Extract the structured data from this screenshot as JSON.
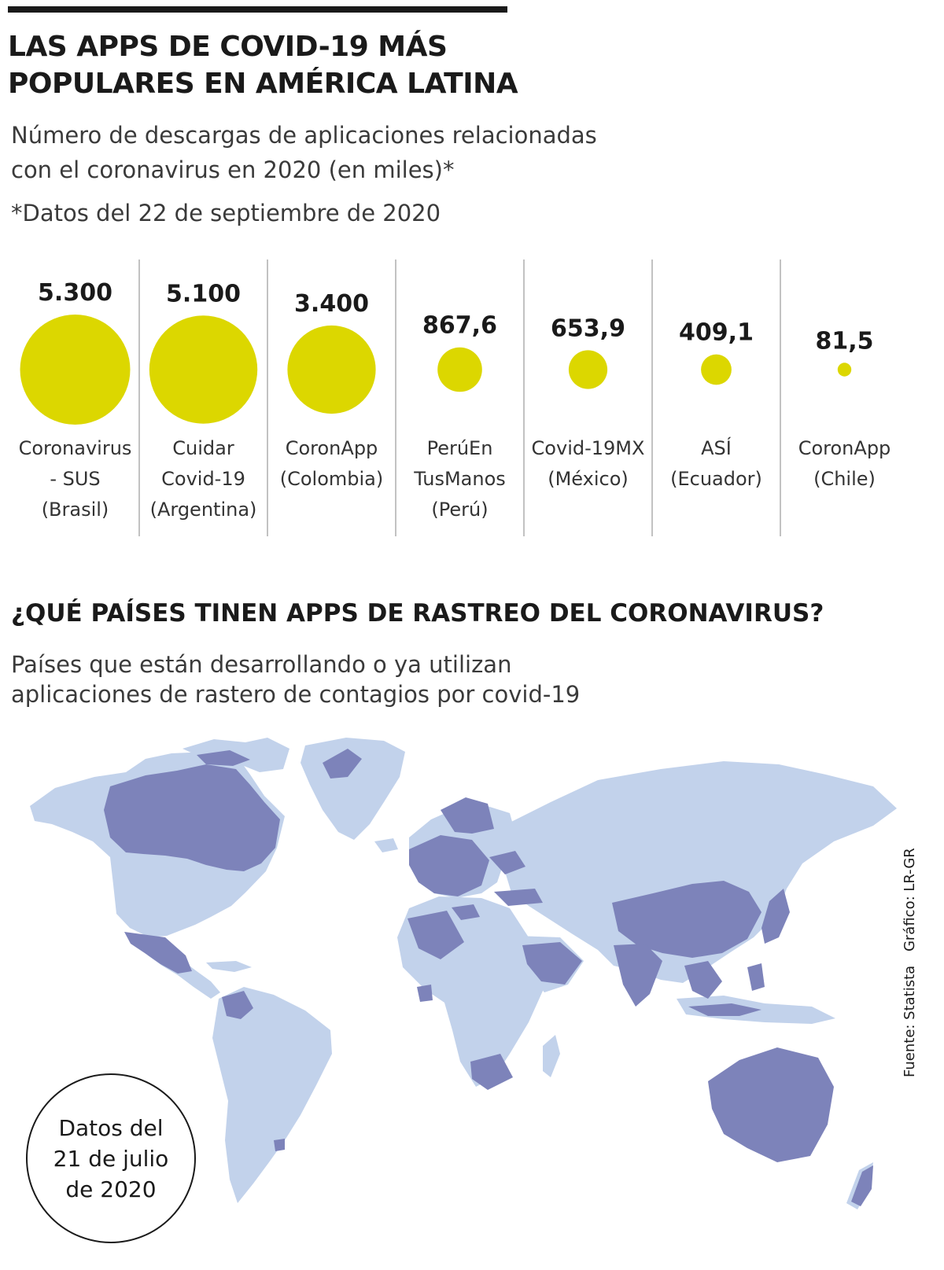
{
  "title": {
    "line1": "LAS APPS DE COVID-19 MÁS",
    "line2": "POPULARES EN AMÉRICA LATINA"
  },
  "subtitle": {
    "line1": "Número de descargas de aplicaciones relacionadas",
    "line2": "con el coronavirus en 2020 (en miles)*"
  },
  "footnote": "*Datos del 22 de septiembre de 2020",
  "colors": {
    "bubble": "#dcd700",
    "divider": "#9a9a9a",
    "map_with_app": "#7d83ba",
    "map_without_app": "#c2d2eb",
    "text": "#1a1a1a"
  },
  "chart_data": {
    "type": "bubble",
    "encoding": "circle area proportional to value",
    "unit": "miles de descargas",
    "items": [
      {
        "value": 5300,
        "value_label": "5.300",
        "label_lines": [
          "Coronavirus",
          "- SUS",
          "(Brasil)"
        ]
      },
      {
        "value": 5100,
        "value_label": "5.100",
        "label_lines": [
          "Cuidar",
          "Covid-19",
          "(Argentina)"
        ]
      },
      {
        "value": 3400,
        "value_label": "3.400",
        "label_lines": [
          "CoronApp",
          "(Colombia)"
        ]
      },
      {
        "value": 867.6,
        "value_label": "867,6",
        "label_lines": [
          "PerúEn",
          "TusManos",
          "(Perú)"
        ]
      },
      {
        "value": 653.9,
        "value_label": "653,9",
        "label_lines": [
          "Covid-19MX",
          "(México)"
        ]
      },
      {
        "value": 409.1,
        "value_label": "409,1",
        "label_lines": [
          "ASÍ",
          "(Ecuador)"
        ]
      },
      {
        "value": 81.5,
        "value_label": "81,5",
        "label_lines": [
          "CoronApp",
          "(Chile)"
        ]
      }
    ]
  },
  "map_section": {
    "title": "¿QUÉ PAÍSES TINEN APPS DE RASTREO DEL CORONAVIRUS?",
    "subtitle": {
      "line1": "Países que están desarrollando o ya utilizan",
      "line2": "aplicaciones de rastero de contagios por covid-19"
    },
    "date_note": [
      "Datos del",
      "21 de julio",
      "de 2020"
    ]
  },
  "credits": {
    "source": "Fuente: Statista",
    "graphic": "Gráfico: LR-GR"
  }
}
